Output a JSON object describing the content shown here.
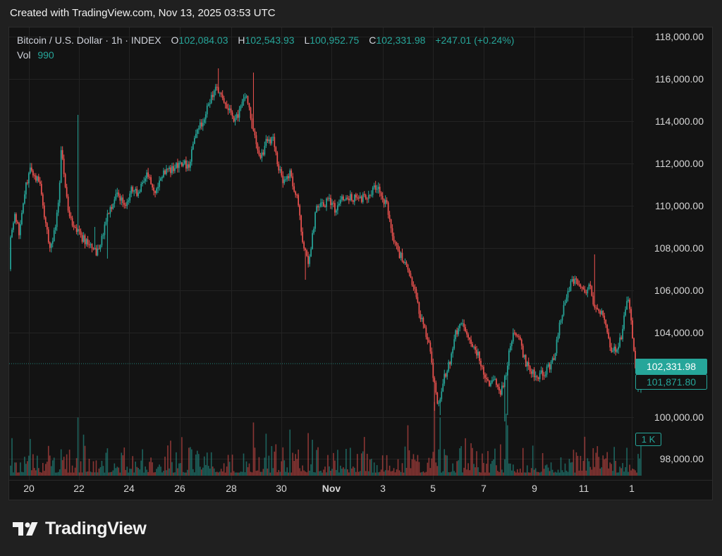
{
  "header": {
    "title": "Created with TradingView.com, Nov 13, 2025 03:53 UTC"
  },
  "legend": {
    "symbol": "Bitcoin / U.S. Dollar · 1h · INDEX",
    "open_label": "O",
    "open": "102,084.03",
    "high_label": "H",
    "high": "102,543.93",
    "low_label": "L",
    "low": "100,952.75",
    "close_label": "C",
    "close": "102,331.98",
    "change": "+247.01 (+0.24%)",
    "vol_label": "Vol",
    "vol": "990"
  },
  "price_axis": {
    "labels": [
      "118,000.00",
      "116,000.00",
      "114,000.00",
      "112,000.00",
      "110,000.00",
      "108,000.00",
      "106,000.00",
      "104,000.00",
      "100,000.00",
      "98,000.00"
    ],
    "current_price": "102,331.98",
    "secondary_price": "101,871.80",
    "volume_label": "1 K"
  },
  "time_axis": {
    "labels": [
      "20",
      "22",
      "24",
      "26",
      "28",
      "30",
      "Nov",
      "3",
      "5",
      "7",
      "9",
      "11",
      "1"
    ]
  },
  "colors": {
    "up": "#26a69a",
    "down": "#ef5350",
    "background": "#131313"
  },
  "logo": {
    "text": "TradingView",
    "icon": "tradingview-logo-icon"
  },
  "chart_data": {
    "type": "candlestick",
    "title": "Bitcoin / U.S. Dollar · 1h · INDEX",
    "interval": "1h",
    "ylim": [
      97000,
      118500
    ],
    "y_ticks": [
      118000,
      116000,
      114000,
      112000,
      110000,
      108000,
      106000,
      104000,
      100000,
      98000
    ],
    "x_ticks": [
      "20",
      "22",
      "24",
      "26",
      "28",
      "30",
      "Nov",
      "3",
      "5",
      "7",
      "9",
      "11",
      "1"
    ],
    "grid": true,
    "current_price": 102331.98,
    "secondary_price": 101871.8,
    "last_candle": {
      "open": 102084.03,
      "high": 102543.93,
      "low": 100952.75,
      "close": 102331.98,
      "change": 247.01,
      "change_pct": 0.24,
      "volume": 990
    },
    "price_path": [
      [
        0,
        106800
      ],
      [
        4,
        108200
      ],
      [
        10,
        109600
      ],
      [
        16,
        108400
      ],
      [
        24,
        110500
      ],
      [
        32,
        111500
      ],
      [
        38,
        111300
      ],
      [
        46,
        110800
      ],
      [
        54,
        108800
      ],
      [
        60,
        107900
      ],
      [
        66,
        108600
      ],
      [
        72,
        110000
      ],
      [
        76,
        112500
      ],
      [
        80,
        111200
      ],
      [
        86,
        109400
      ],
      [
        96,
        108700
      ],
      [
        108,
        108200
      ],
      [
        118,
        108000
      ],
      [
        126,
        107500
      ],
      [
        134,
        108400
      ],
      [
        144,
        109600
      ],
      [
        154,
        110300
      ],
      [
        166,
        109800
      ],
      [
        176,
        110600
      ],
      [
        186,
        110400
      ],
      [
        198,
        111300
      ],
      [
        208,
        110400
      ],
      [
        216,
        111000
      ],
      [
        224,
        111500
      ],
      [
        236,
        111600
      ],
      [
        248,
        111900
      ],
      [
        256,
        111600
      ],
      [
        266,
        113300
      ],
      [
        276,
        113800
      ],
      [
        286,
        114800
      ],
      [
        296,
        115300
      ],
      [
        306,
        114900
      ],
      [
        314,
        114400
      ],
      [
        322,
        113700
      ],
      [
        330,
        114500
      ],
      [
        338,
        115000
      ],
      [
        344,
        114000
      ],
      [
        352,
        112800
      ],
      [
        360,
        112100
      ],
      [
        368,
        113000
      ],
      [
        376,
        112900
      ],
      [
        384,
        111600
      ],
      [
        392,
        110900
      ],
      [
        400,
        111300
      ],
      [
        410,
        110200
      ],
      [
        418,
        108300
      ],
      [
        426,
        106900
      ],
      [
        432,
        108400
      ],
      [
        438,
        109700
      ],
      [
        446,
        109900
      ],
      [
        456,
        110000
      ],
      [
        466,
        109600
      ],
      [
        476,
        110200
      ],
      [
        488,
        110200
      ],
      [
        500,
        110100
      ],
      [
        512,
        110300
      ],
      [
        520,
        110700
      ],
      [
        528,
        110400
      ],
      [
        538,
        109800
      ],
      [
        544,
        108700
      ],
      [
        552,
        107700
      ],
      [
        560,
        107300
      ],
      [
        568,
        106700
      ],
      [
        576,
        106000
      ],
      [
        584,
        104700
      ],
      [
        592,
        103900
      ],
      [
        600,
        102900
      ],
      [
        604,
        101500
      ],
      [
        610,
        100300
      ],
      [
        616,
        101300
      ],
      [
        622,
        102000
      ],
      [
        628,
        102400
      ],
      [
        636,
        103900
      ],
      [
        644,
        104100
      ],
      [
        652,
        103600
      ],
      [
        660,
        103200
      ],
      [
        668,
        102700
      ],
      [
        676,
        101800
      ],
      [
        682,
        101400
      ],
      [
        688,
        101500
      ],
      [
        694,
        101300
      ],
      [
        700,
        101000
      ],
      [
        706,
        101700
      ],
      [
        712,
        103200
      ],
      [
        718,
        103900
      ],
      [
        726,
        103400
      ],
      [
        734,
        102400
      ],
      [
        742,
        101900
      ],
      [
        752,
        101800
      ],
      [
        760,
        101900
      ],
      [
        768,
        102200
      ],
      [
        776,
        102800
      ],
      [
        784,
        104400
      ],
      [
        792,
        105300
      ],
      [
        798,
        106200
      ],
      [
        806,
        106300
      ],
      [
        814,
        105900
      ],
      [
        820,
        105600
      ],
      [
        826,
        106000
      ],
      [
        832,
        104900
      ],
      [
        840,
        104800
      ],
      [
        848,
        104200
      ],
      [
        856,
        103000
      ],
      [
        864,
        103100
      ],
      [
        870,
        103500
      ],
      [
        876,
        104900
      ],
      [
        880,
        105300
      ],
      [
        884,
        104300
      ],
      [
        888,
        102900
      ],
      [
        892,
        101600
      ],
      [
        897,
        102300
      ]
    ],
    "extremes": [
      [
        97,
        114100
      ],
      [
        121,
        108800
      ],
      [
        140,
        107300
      ],
      [
        297,
        116300
      ],
      [
        347,
        116100
      ],
      [
        421,
        106300
      ],
      [
        603,
        100100
      ],
      [
        611,
        99900
      ],
      [
        703,
        99600
      ],
      [
        706,
        99900
      ],
      [
        830,
        107500
      ],
      [
        893,
        101000
      ]
    ],
    "volume_spikes": [
      [
        97,
        1500
      ],
      [
        566,
        1300
      ],
      [
        604,
        1900
      ],
      [
        611,
        1500
      ],
      [
        704,
        1600
      ],
      [
        707,
        1300
      ]
    ]
  }
}
